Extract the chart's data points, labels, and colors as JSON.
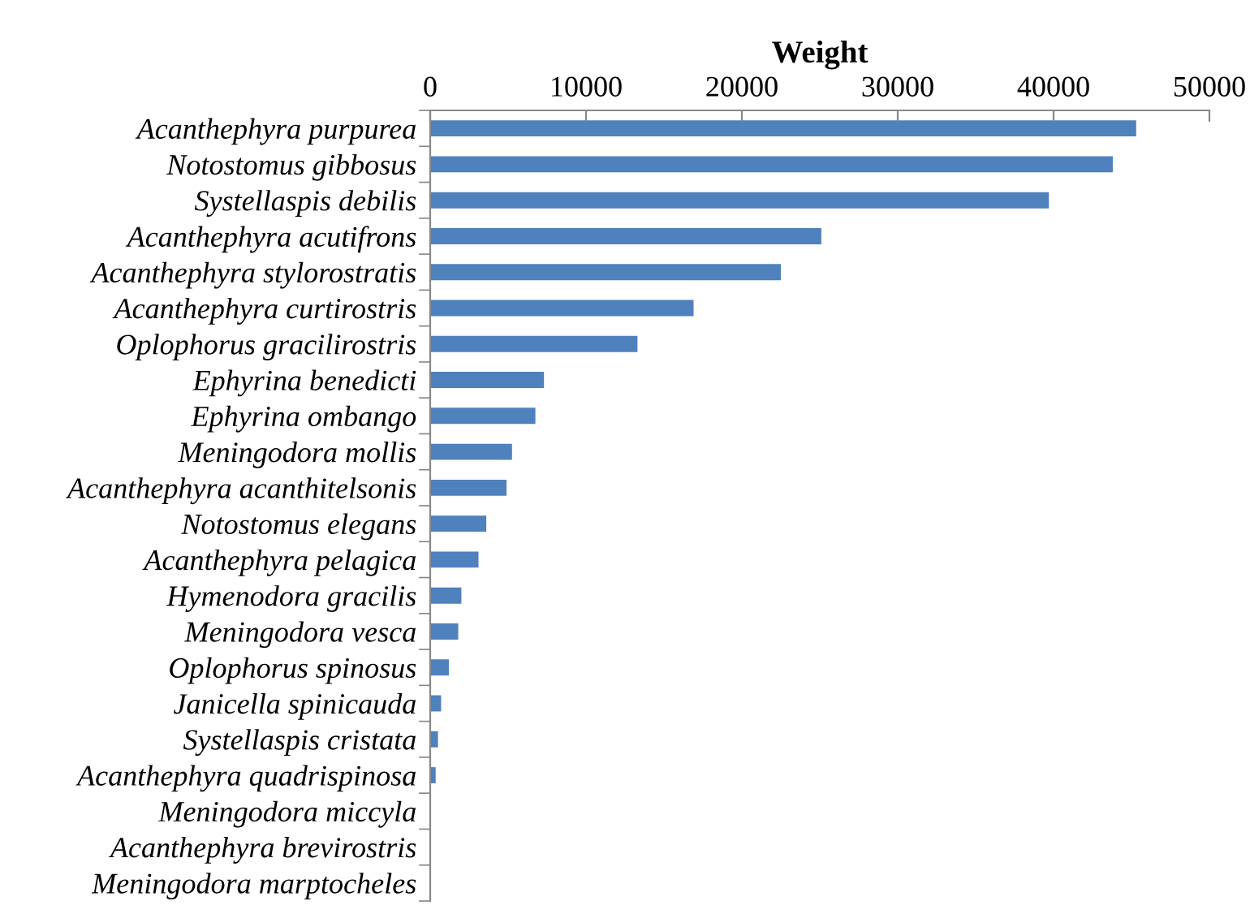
{
  "chart_data": {
    "type": "bar",
    "orientation": "horizontal",
    "xlabel": "Weight",
    "categories": [
      "Acanthephyra purpurea",
      "Notostomus gibbosus",
      "Systellaspis debilis",
      "Acanthephyra acutifrons",
      "Acanthephyra stylorostratis",
      "Acanthephyra curtirostris",
      "Oplophorus gracilirostris",
      "Ephyrina benedicti",
      "Ephyrina ombango",
      "Meningodora mollis",
      "Acanthephyra acanthitelsonis",
      "Notostomus elegans",
      "Acanthephyra pelagica",
      "Hymenodora gracilis",
      "Meningodora vesca",
      "Oplophorus spinosus",
      "Janicella spinicauda",
      "Systellaspis cristata",
      "Acanthephyra quadrispinosa",
      "Meningodora miccyla",
      "Acanthephyra brevirostris",
      "Meningodora marptocheles"
    ],
    "values": [
      45300,
      43800,
      39700,
      25100,
      22500,
      16900,
      13300,
      7300,
      6750,
      5250,
      4900,
      3600,
      3100,
      2000,
      1800,
      1200,
      700,
      500,
      350,
      0,
      0,
      0
    ],
    "color": "#4f81bd",
    "xlim": [
      0,
      50000
    ],
    "xticks": [
      0,
      10000,
      20000,
      30000,
      40000,
      50000
    ],
    "grid": false,
    "legend": false
  }
}
